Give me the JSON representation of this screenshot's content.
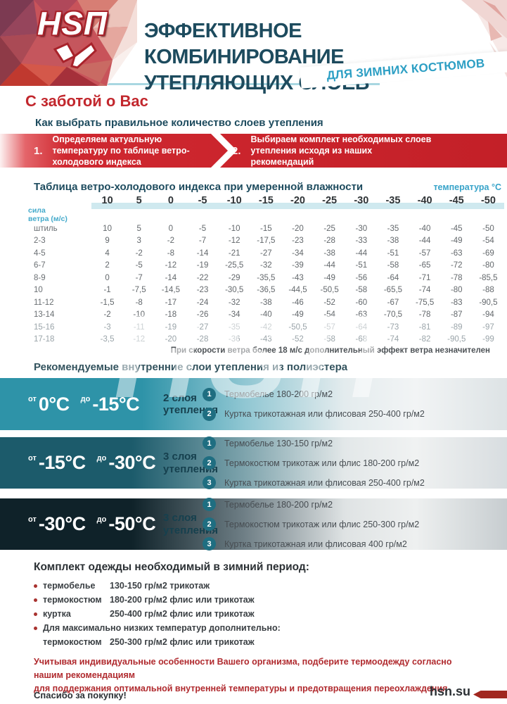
{
  "header": {
    "logo_text": "HSП",
    "title_line1": "ЭФФЕКТИВНОЕ КОМБИНИРОВАНИЕ",
    "title_line2": "УТЕПЛЯЮЩИХ СЛОЕВ",
    "subtitle_ribbon": "ДЛЯ ЗИМНИХ КОСТЮМОВ"
  },
  "intro": {
    "care_heading": "С заботой о Вас",
    "how_to_heading": "Как выбрать правильное количество слоев утепления",
    "steps": [
      {
        "num": "1.",
        "text": "Определяем актуальную температуру по таблице ветро-холодового индекса"
      },
      {
        "num": "2.",
        "text": "Выбираем комплект необходимых слоев утепления исходя из наших рекомендаций"
      }
    ]
  },
  "wind_table": {
    "title": "Таблица ветро-холодового индекса при умеренной влажности",
    "temp_label": "температура °C",
    "wind_label": "сила\nветра (м/с)",
    "columns": [
      "10",
      "5",
      "0",
      "-5",
      "-10",
      "-15",
      "-20",
      "-25",
      "-30",
      "-35",
      "-40",
      "-45",
      "-50"
    ],
    "rows": [
      {
        "label": "штиль",
        "values": [
          "10",
          "5",
          "0",
          "-5",
          "-10",
          "-15",
          "-20",
          "-25",
          "-30",
          "-35",
          "-40",
          "-45",
          "-50"
        ],
        "muted": false
      },
      {
        "label": "2-3",
        "values": [
          "9",
          "3",
          "-2",
          "-7",
          "-12",
          "-17,5",
          "-23",
          "-28",
          "-33",
          "-38",
          "-44",
          "-49",
          "-54"
        ],
        "muted": false
      },
      {
        "label": "4-5",
        "values": [
          "4",
          "-2",
          "-8",
          "-14",
          "-21",
          "-27",
          "-34",
          "-38",
          "-44",
          "-51",
          "-57",
          "-63",
          "-69"
        ],
        "muted": false
      },
      {
        "label": "6-7",
        "values": [
          "2",
          "-5",
          "-12",
          "-19",
          "-25,5",
          "-32",
          "-39",
          "-44",
          "-51",
          "-58",
          "-65",
          "-72",
          "-80"
        ],
        "muted": false
      },
      {
        "label": "8-9",
        "values": [
          "0",
          "-7",
          "-14",
          "-22",
          "-29",
          "-35,5",
          "-43",
          "-49",
          "-56",
          "-64",
          "-71",
          "-78",
          "-85,5"
        ],
        "muted": false
      },
      {
        "label": "10",
        "values": [
          "-1",
          "-7,5",
          "-14,5",
          "-23",
          "-30,5",
          "-36,5",
          "-44,5",
          "-50,5",
          "-58",
          "-65,5",
          "-74",
          "-80",
          "-88"
        ],
        "muted": false
      },
      {
        "label": "11-12",
        "values": [
          "-1,5",
          "-8",
          "-17",
          "-24",
          "-32",
          "-38",
          "-46",
          "-52",
          "-60",
          "-67",
          "-75,5",
          "-83",
          "-90,5"
        ],
        "muted": false
      },
      {
        "label": "13-14",
        "values": [
          "-2",
          "-10",
          "-18",
          "-26",
          "-34",
          "-40",
          "-49",
          "-54",
          "-63",
          "-70,5",
          "-78",
          "-87",
          "-94"
        ],
        "muted": false
      },
      {
        "label": "15-16",
        "values": [
          "-3",
          "-11",
          "-19",
          "-27",
          "-35",
          "-42",
          "-50,5",
          "-57",
          "-64",
          "-73",
          "-81",
          "-89",
          "-97"
        ],
        "muted": true
      },
      {
        "label": "17-18",
        "values": [
          "-3,5",
          "-12",
          "-20",
          "-28",
          "-36",
          "-43",
          "-52",
          "-58",
          "-68",
          "-74",
          "-82",
          "-90,5",
          "-99"
        ],
        "muted": true
      }
    ],
    "note": "При скорости ветра более 18 м/с дополнительный эффект ветра незначителен"
  },
  "watermark": "HSП",
  "layers_section": {
    "heading": "Рекомендуемые внутренние слои утепления из полиэстера",
    "bands": [
      {
        "from_label": "от",
        "from_value": "0°C",
        "to_label": "до",
        "to_value": "-15°C",
        "layers_line1": "2 слоя",
        "layers_line2": "утепления",
        "items": [
          {
            "num": "1",
            "text": "Термобелье 180-200 гр/м2"
          },
          {
            "num": "2",
            "text": "Куртка трикотажная или флисовая 250-400 гр/м2"
          }
        ]
      },
      {
        "from_label": "от",
        "from_value": "-15°C",
        "to_label": "до",
        "to_value": "-30°C",
        "layers_line1": "3 слоя",
        "layers_line2": "утепления",
        "items": [
          {
            "num": "1",
            "text": "Термобелье 130-150 гр/м2"
          },
          {
            "num": "2",
            "text": "Термокостюм трикотаж или флис 180-200 гр/м2"
          },
          {
            "num": "3",
            "text": "Куртка трикотажная или флисовая 250-400 гр/м2"
          }
        ]
      },
      {
        "from_label": "от",
        "from_value": "-30°C",
        "to_label": "до",
        "to_value": "-50°C",
        "layers_line1": "3 слоя",
        "layers_line2": "утепления",
        "items": [
          {
            "num": "1",
            "text": "Термобелье 180-200 гр/м2"
          },
          {
            "num": "2",
            "text": "Термокостюм трикотаж или флис 250-300 гр/м2"
          },
          {
            "num": "3",
            "text": "Куртка трикотажная или флисовая 400 гр/м2"
          }
        ]
      }
    ]
  },
  "kit_section": {
    "heading": "Комплект одежды необходимый в зимний период:",
    "items": [
      {
        "label": "термобелье",
        "value": "130-150 гр/м2 трикотаж"
      },
      {
        "label": "термокостюм",
        "value": "180-200 гр/м2 флис или трикотаж"
      },
      {
        "label": "куртка",
        "value": "250-400 гр/м2 флис или трикотаж"
      }
    ],
    "extra_heading": "Для максимально низких температур дополнительно:",
    "extra_item": {
      "label": "термокостюм",
      "value": "250-300 гр/м2 флис или трикотаж"
    }
  },
  "footer": {
    "advice_line1": "Учитывая индивидуальные особенности Вашего организма, подберите термоодежду согласно нашим рекомендациям",
    "advice_line2": "для поддержания оптимальной внутренней температуры и предотвращения переохлаждения",
    "thanks": "Спасибо за покупку!",
    "site": "hsn.su"
  },
  "colors": {
    "accent_red": "#c9232b",
    "dark_teal": "#1d4b5e",
    "light_blue": "#37a3c9",
    "band1_teal": "#2e93a8",
    "band2_teal": "#1c5b6b",
    "band3_dark": "#0f2229",
    "table_strip": "#cfe9ef",
    "footer_red": "#a1271f"
  }
}
